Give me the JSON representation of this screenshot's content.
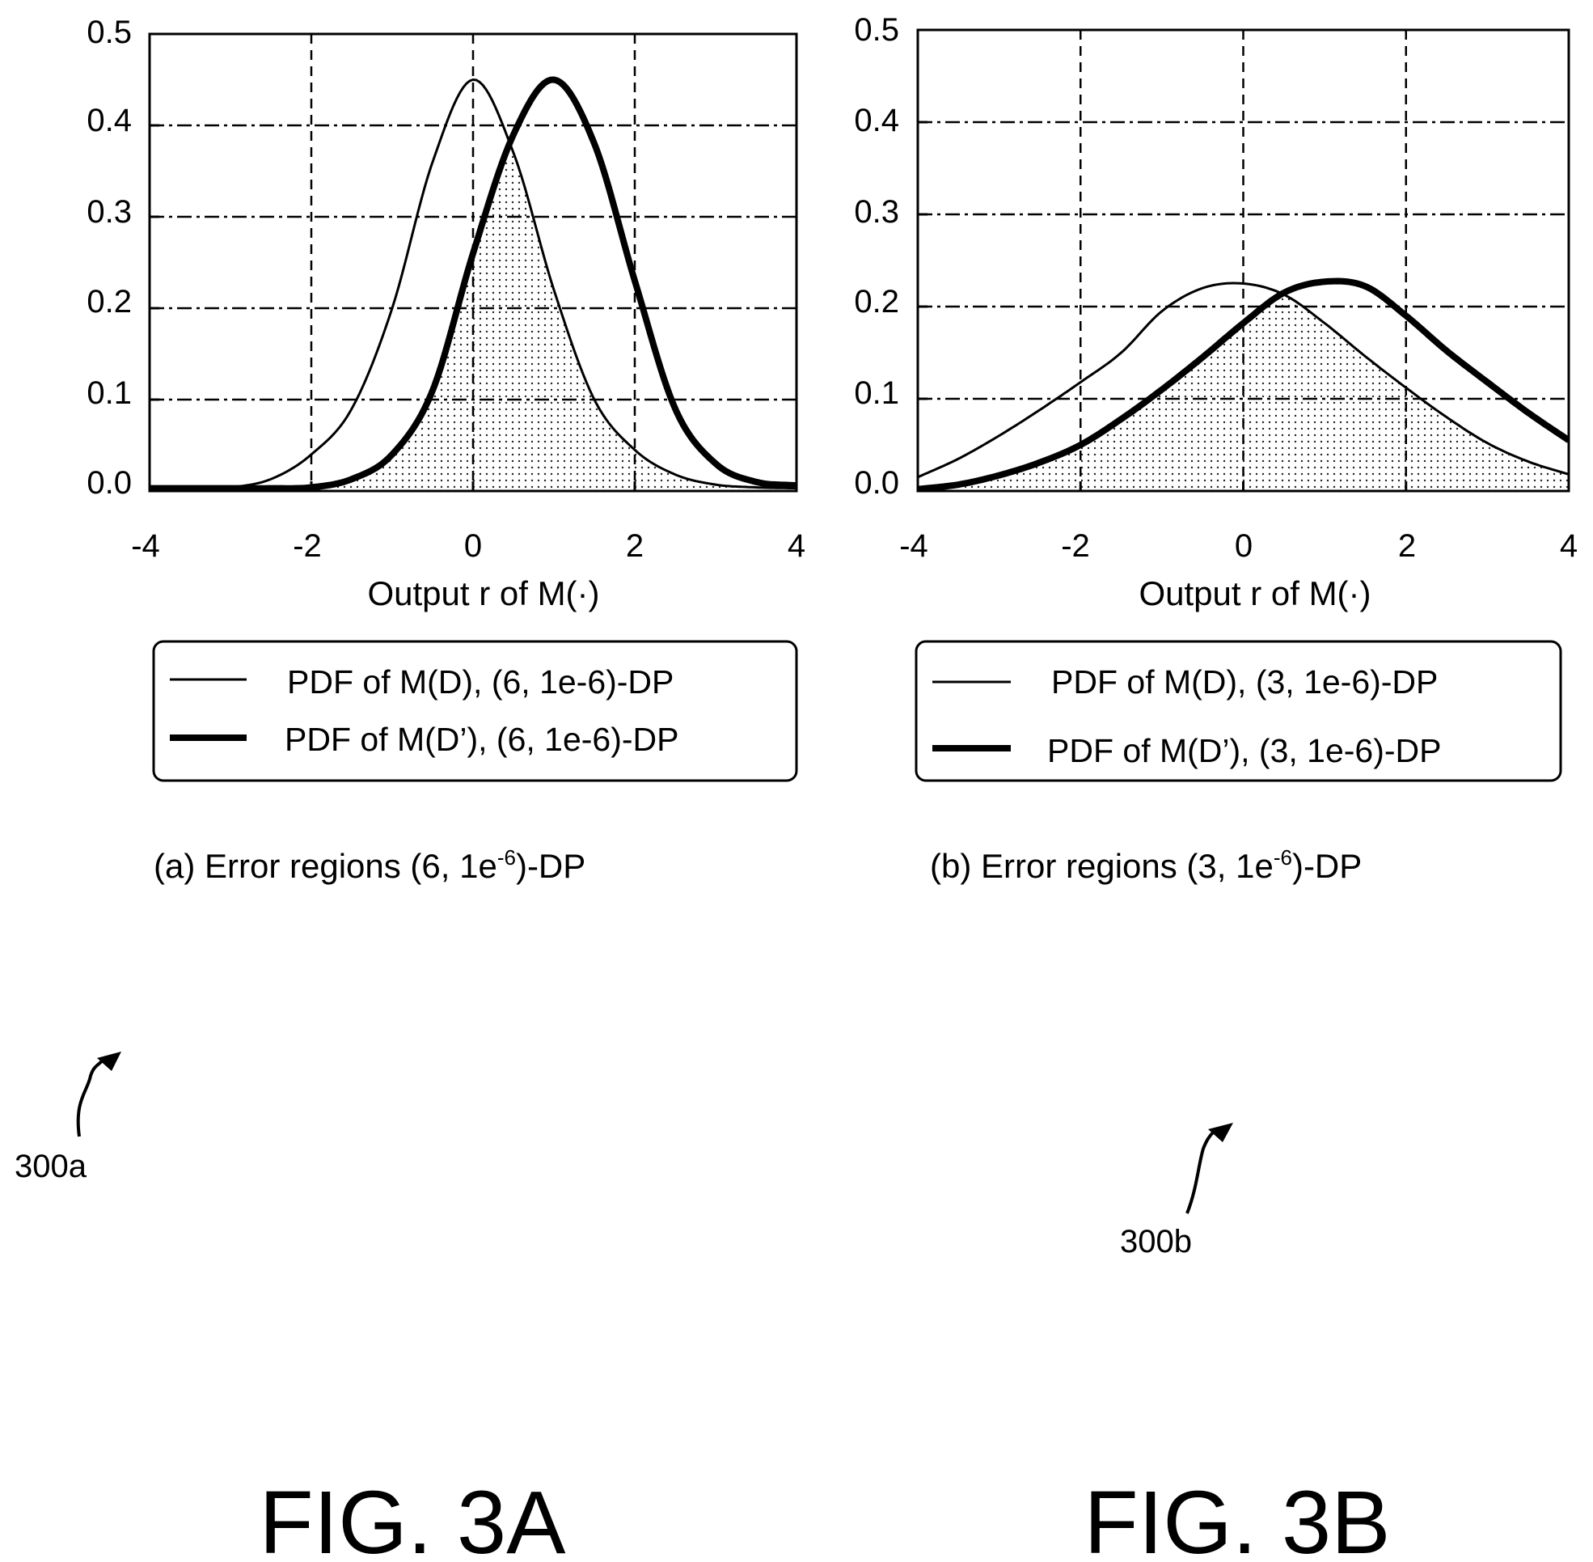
{
  "chart_data": [
    {
      "type": "line",
      "xlabel": "Output r of M(·)",
      "ylabel": "",
      "xlim": [
        -4,
        4
      ],
      "ylim": [
        0,
        0.5
      ],
      "xticks": [
        "-4",
        "-2",
        "0",
        "2",
        "4"
      ],
      "yticks": [
        "0.0",
        "0.1",
        "0.2",
        "0.3",
        "0.4",
        "0.5"
      ],
      "grid": true,
      "shaded_overlap": true,
      "legend_position": "below",
      "series": [
        {
          "name": "PDF of M(D), (6, 1e-6)-DP",
          "style": "thin",
          "x": [
            -4,
            -3.5,
            -3,
            -2.5,
            -2,
            -1.5,
            -1,
            -0.5,
            0,
            0.5,
            1,
            1.5,
            2,
            2.5,
            3,
            3.5,
            4
          ],
          "y": [
            0.003,
            0.003,
            0.004,
            0.013,
            0.04,
            0.09,
            0.2,
            0.36,
            0.45,
            0.37,
            0.22,
            0.1,
            0.045,
            0.018,
            0.007,
            0.004,
            0.003
          ]
        },
        {
          "name": "PDF of M(D’), (6, 1e-6)-DP",
          "style": "thick",
          "x": [
            -4,
            -3.5,
            -3,
            -2.5,
            -2,
            -1.5,
            -1,
            -0.5,
            0,
            0.5,
            1,
            1.5,
            2,
            2.5,
            3,
            3.5,
            4
          ],
          "y": [
            0.003,
            0.003,
            0.003,
            0.003,
            0.004,
            0.013,
            0.04,
            0.11,
            0.26,
            0.39,
            0.45,
            0.38,
            0.23,
            0.09,
            0.03,
            0.01,
            0.006
          ]
        }
      ],
      "caption_prefix": "(a) Error regions (6, 1e",
      "caption_sup": "-6",
      "caption_suffix": ")-DP",
      "reference": "300a",
      "figure_label": "FIG. 3A"
    },
    {
      "type": "line",
      "xlabel": "Output r of M(·)",
      "ylabel": "",
      "xlim": [
        -4,
        4
      ],
      "ylim": [
        0,
        0.5
      ],
      "xticks": [
        "-4",
        "-2",
        "0",
        "2",
        "4"
      ],
      "yticks": [
        "0.0",
        "0.1",
        "0.2",
        "0.3",
        "0.4",
        "0.5"
      ],
      "grid": true,
      "shaded_overlap": true,
      "legend_position": "below",
      "series": [
        {
          "name": "PDF of M(D), (3, 1e-6)-DP",
          "style": "thin",
          "x": [
            -4,
            -3.5,
            -3,
            -2.5,
            -2,
            -1.5,
            -1,
            -0.5,
            0,
            0.5,
            1,
            1.5,
            2,
            2.5,
            3,
            3.5,
            4
          ],
          "y": [
            0.015,
            0.035,
            0.06,
            0.088,
            0.118,
            0.15,
            0.195,
            0.22,
            0.225,
            0.213,
            0.182,
            0.146,
            0.112,
            0.08,
            0.052,
            0.032,
            0.018
          ]
        },
        {
          "name": "PDF of M(D’), (3, 1e-6)-DP",
          "style": "thick",
          "x": [
            -4,
            -3.5,
            -3,
            -2.5,
            -2,
            -1.5,
            -1,
            -0.5,
            0,
            0.5,
            1,
            1.5,
            2,
            2.5,
            3,
            3.5,
            4
          ],
          "y": [
            0.002,
            0.007,
            0.017,
            0.031,
            0.05,
            0.078,
            0.11,
            0.145,
            0.182,
            0.215,
            0.227,
            0.222,
            0.19,
            0.152,
            0.118,
            0.085,
            0.055
          ]
        }
      ],
      "caption_prefix": "(b) Error regions (3, 1e",
      "caption_sup": "-6",
      "caption_suffix": ")-DP",
      "reference": "300b",
      "figure_label": "FIG. 3B"
    }
  ]
}
